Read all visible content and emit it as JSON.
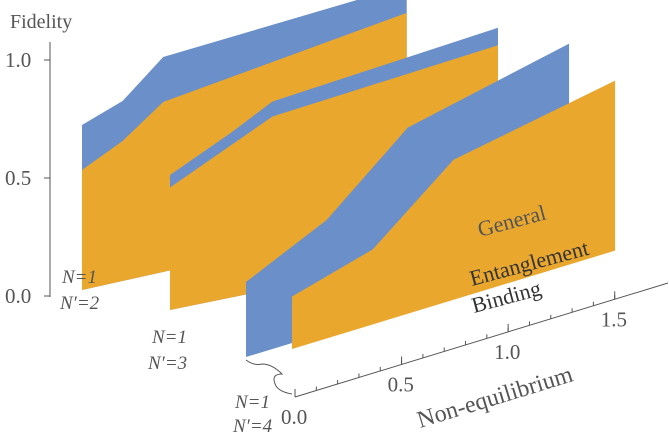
{
  "chart_data": {
    "type": "area",
    "ylabel": "Fidelity",
    "xlabel": "Non-equilibrium",
    "y_ticks": [
      "0.0",
      "0.5",
      "1.0"
    ],
    "x_ticks": [
      "0.0",
      "0.5",
      "1.0",
      "1.5"
    ],
    "ylim": [
      0,
      1
    ],
    "xlim": [
      0,
      1.6
    ],
    "colors": {
      "general": "#6b8fc8",
      "binding": "#e9a72e"
    },
    "series_labels": {
      "general": "General",
      "binding_line1": "Entanglement",
      "binding_line2": "Binding"
    },
    "panels": [
      {
        "name_line1": "N=1",
        "name_line2": "N′=2",
        "x": [
          0.0,
          0.2,
          0.4,
          1.6
        ],
        "general": [
          0.66,
          0.72,
          0.86,
          0.93
        ],
        "binding": [
          0.48,
          0.56,
          0.68,
          0.82
        ]
      },
      {
        "name_line1": "N=1",
        "name_line2": "N′=3",
        "x": [
          0.0,
          0.3,
          0.5,
          1.6
        ],
        "general": [
          0.54,
          0.66,
          0.75,
          0.86
        ],
        "binding": [
          0.49,
          0.61,
          0.69,
          0.79
        ]
      },
      {
        "name_line1": "N=1",
        "name_line2": "N′=4",
        "x": [
          0.0,
          0.4,
          0.8,
          1.6
        ],
        "general": [
          0.3,
          0.45,
          0.72,
          0.86
        ],
        "binding": [
          0.21,
          0.3,
          0.56,
          0.68
        ]
      }
    ]
  }
}
